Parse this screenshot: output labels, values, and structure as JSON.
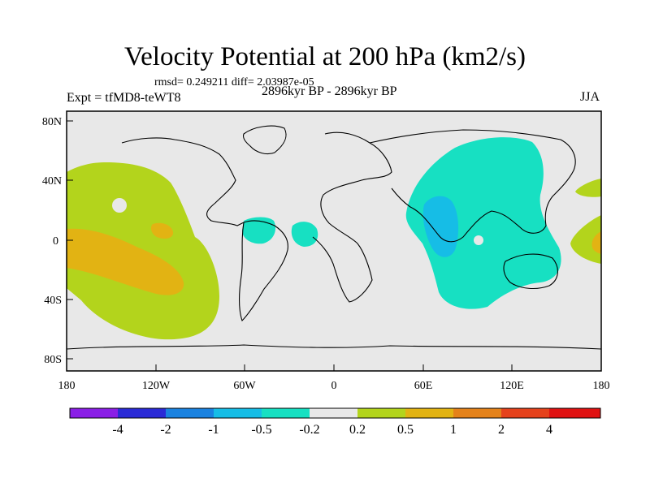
{
  "title": "Velocity Potential at 200 hPa (km2/s)",
  "stats": "rmsd= 0.249211 diff= 2.03987e-05",
  "experiment": "Expt = tfMD8-teWT8",
  "period": "2896kyr BP - 2896kyr BP",
  "season": "JJA",
  "map": {
    "lat_ticks": [
      "80N",
      "40N",
      "0",
      "40S",
      "80S"
    ],
    "lon_ticks": [
      "180",
      "120W",
      "60W",
      "0",
      "60E",
      "120E",
      "180"
    ]
  },
  "colorbar": {
    "labels": [
      "-4",
      "-2",
      "-1",
      "-0.5",
      "-0.2",
      "0.2",
      "0.5",
      "1",
      "2",
      "4"
    ],
    "colors": [
      "#8a1ee6",
      "#2a2ad6",
      "#1a82e0",
      "#16bde6",
      "#17e0c2",
      "#e8e8e8",
      "#b3d41c",
      "#e2b313",
      "#e4821a",
      "#e5421c",
      "#e01212"
    ]
  },
  "colors": {
    "land_bg": "#e8e8e8",
    "neutral": "#e8e8e8",
    "pos_weak": "#b3d41c",
    "pos_mid": "#e2b313",
    "pos_strong": "#e4821a",
    "neg_weak": "#17e0c2",
    "neg_mid": "#16bde6",
    "neg_strong": "#1a82e0"
  }
}
